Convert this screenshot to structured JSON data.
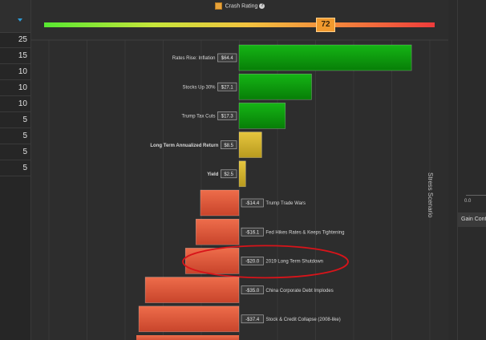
{
  "left_panel": {
    "header": "",
    "values": [
      "25",
      "15",
      "10",
      "10",
      "10",
      "5",
      "5",
      "5",
      "5"
    ]
  },
  "chart_data": {
    "type": "bar",
    "orientation": "horizontal",
    "legend": {
      "label": "Crash Rating",
      "rating": "72"
    },
    "colors": {
      "positive": "#0b9a0b",
      "neutral": "#d2b42c",
      "negative": "#e2573a"
    },
    "rows": [
      {
        "name": "Rates Rise: Inflation",
        "value": 64.4,
        "label": "$64.4",
        "bold": false,
        "tone": "positive"
      },
      {
        "name": "Stocks Up 30%",
        "value": 27.1,
        "label": "$27.1",
        "bold": false,
        "tone": "positive"
      },
      {
        "name": "Trump Tax Cuts",
        "value": 17.3,
        "label": "$17.3",
        "bold": false,
        "tone": "positive"
      },
      {
        "name": "Long Term Annualized Return",
        "value": 8.5,
        "label": "$8.5",
        "bold": true,
        "tone": "neutral"
      },
      {
        "name": "Yield",
        "value": 2.5,
        "label": "$2.5",
        "bold": true,
        "tone": "neutral"
      },
      {
        "name": "Trump Trade Wars",
        "value": -14.4,
        "label": "-$14.4",
        "bold": false,
        "tone": "negative"
      },
      {
        "name": "Fed Hikes Rates & Keeps Tightening",
        "value": -16.1,
        "label": "-$16.1",
        "bold": false,
        "tone": "negative"
      },
      {
        "name": "2019 Long Term Shutdown",
        "value": -20.0,
        "label": "-$20.0",
        "bold": false,
        "tone": "negative",
        "highlighted": true
      },
      {
        "name": "China Corporate Debt Implodes",
        "value": -35.0,
        "label": "-$35.0",
        "bold": false,
        "tone": "negative"
      },
      {
        "name": "Stock & Credit Collapse (2008-like)",
        "value": -37.4,
        "label": "-$37.4",
        "bold": false,
        "tone": "negative"
      }
    ]
  },
  "side_label": "Stress Scenario",
  "right_panel": {
    "axis_tick": "0.0",
    "gain_label": "Gain Contri"
  }
}
